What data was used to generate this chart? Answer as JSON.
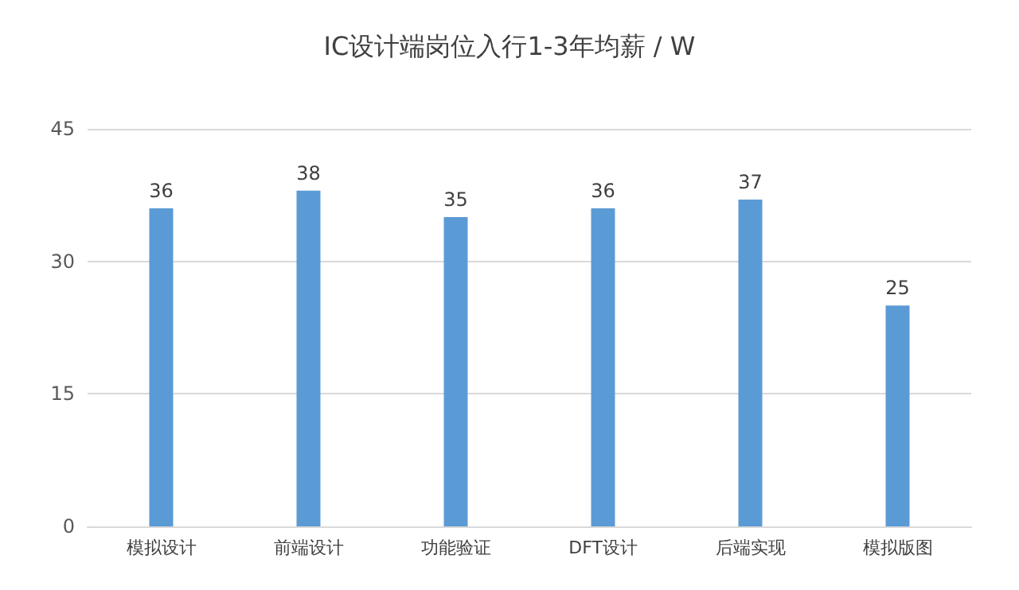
{
  "chart_data": {
    "type": "bar",
    "title": "IC设计端岗位入行1-3年均薪 / W",
    "categories": [
      "模拟设计",
      "前端设计",
      "功能验证",
      "DFT设计",
      "后端实现",
      "模拟版图"
    ],
    "values": [
      36,
      38,
      35,
      36,
      37,
      25
    ],
    "color": "#5b9bd5",
    "ylim": [
      0,
      45
    ],
    "yticks": [
      0,
      15,
      30,
      45
    ],
    "grid": "y",
    "data_labels": true
  }
}
